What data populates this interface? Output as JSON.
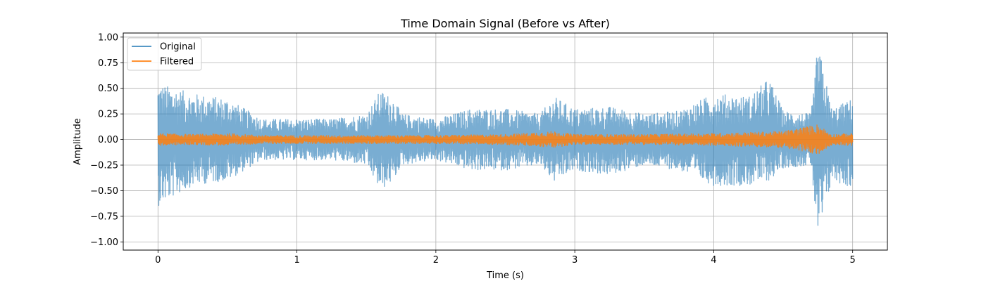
{
  "chart_data": {
    "type": "line",
    "title": "Time Domain Signal (Before vs After)",
    "xlabel": "Time (s)",
    "ylabel": "Amplitude",
    "xlim": [
      -0.25,
      5.25
    ],
    "ylim": [
      -1.08,
      1.04
    ],
    "xticks": [
      0,
      1,
      2,
      3,
      4,
      5
    ],
    "xtick_labels": [
      "0",
      "1",
      "2",
      "3",
      "4",
      "5"
    ],
    "yticks": [
      1.0,
      0.75,
      0.5,
      0.25,
      0.0,
      -0.25,
      -0.5,
      -0.75,
      -1.0
    ],
    "ytick_labels": [
      "1.00",
      "0.75",
      "0.50",
      "0.25",
      "0.00",
      "−0.25",
      "−0.50",
      "−0.75",
      "−1.00"
    ],
    "grid": true,
    "legend_position": "upper-left",
    "series": [
      {
        "name": "Original",
        "color": "#1f77b4",
        "opacity": 0.6,
        "x": [
          0,
          0.25,
          0.5,
          0.75,
          1.0,
          1.25,
          1.5,
          1.6,
          1.7,
          1.75,
          2.0,
          2.25,
          2.5,
          2.75,
          2.85,
          3.0,
          3.25,
          3.5,
          3.75,
          4.0,
          4.25,
          4.4,
          4.5,
          4.7,
          4.75,
          4.85,
          5.0
        ],
        "envelope_upper": [
          0.55,
          0.45,
          0.4,
          0.2,
          0.2,
          0.2,
          0.25,
          0.48,
          0.4,
          0.25,
          0.2,
          0.3,
          0.3,
          0.25,
          0.42,
          0.3,
          0.32,
          0.25,
          0.28,
          0.45,
          0.42,
          0.6,
          0.28,
          0.25,
          0.94,
          0.3,
          0.4
        ],
        "envelope_lower": [
          -0.65,
          -0.45,
          -0.4,
          -0.2,
          -0.2,
          -0.2,
          -0.25,
          -0.5,
          -0.4,
          -0.25,
          -0.2,
          -0.3,
          -0.3,
          -0.25,
          -0.42,
          -0.3,
          -0.35,
          -0.25,
          -0.3,
          -0.45,
          -0.45,
          -0.4,
          -0.28,
          -0.25,
          -1.0,
          -0.4,
          -0.48
        ]
      },
      {
        "name": "Filtered",
        "color": "#ff7f0e",
        "opacity": 0.85,
        "x": [
          0,
          0.25,
          0.5,
          0.75,
          1.0,
          1.5,
          2.0,
          2.5,
          2.85,
          3.0,
          3.5,
          4.0,
          4.5,
          4.75,
          4.85,
          5.0
        ],
        "envelope_upper": [
          0.06,
          0.05,
          0.06,
          0.04,
          0.04,
          0.04,
          0.04,
          0.05,
          0.08,
          0.05,
          0.05,
          0.06,
          0.08,
          0.15,
          0.05,
          0.06
        ],
        "envelope_lower": [
          -0.06,
          -0.05,
          -0.06,
          -0.04,
          -0.04,
          -0.04,
          -0.04,
          -0.05,
          -0.08,
          -0.05,
          -0.05,
          -0.06,
          -0.08,
          -0.15,
          -0.05,
          -0.06
        ]
      }
    ]
  }
}
